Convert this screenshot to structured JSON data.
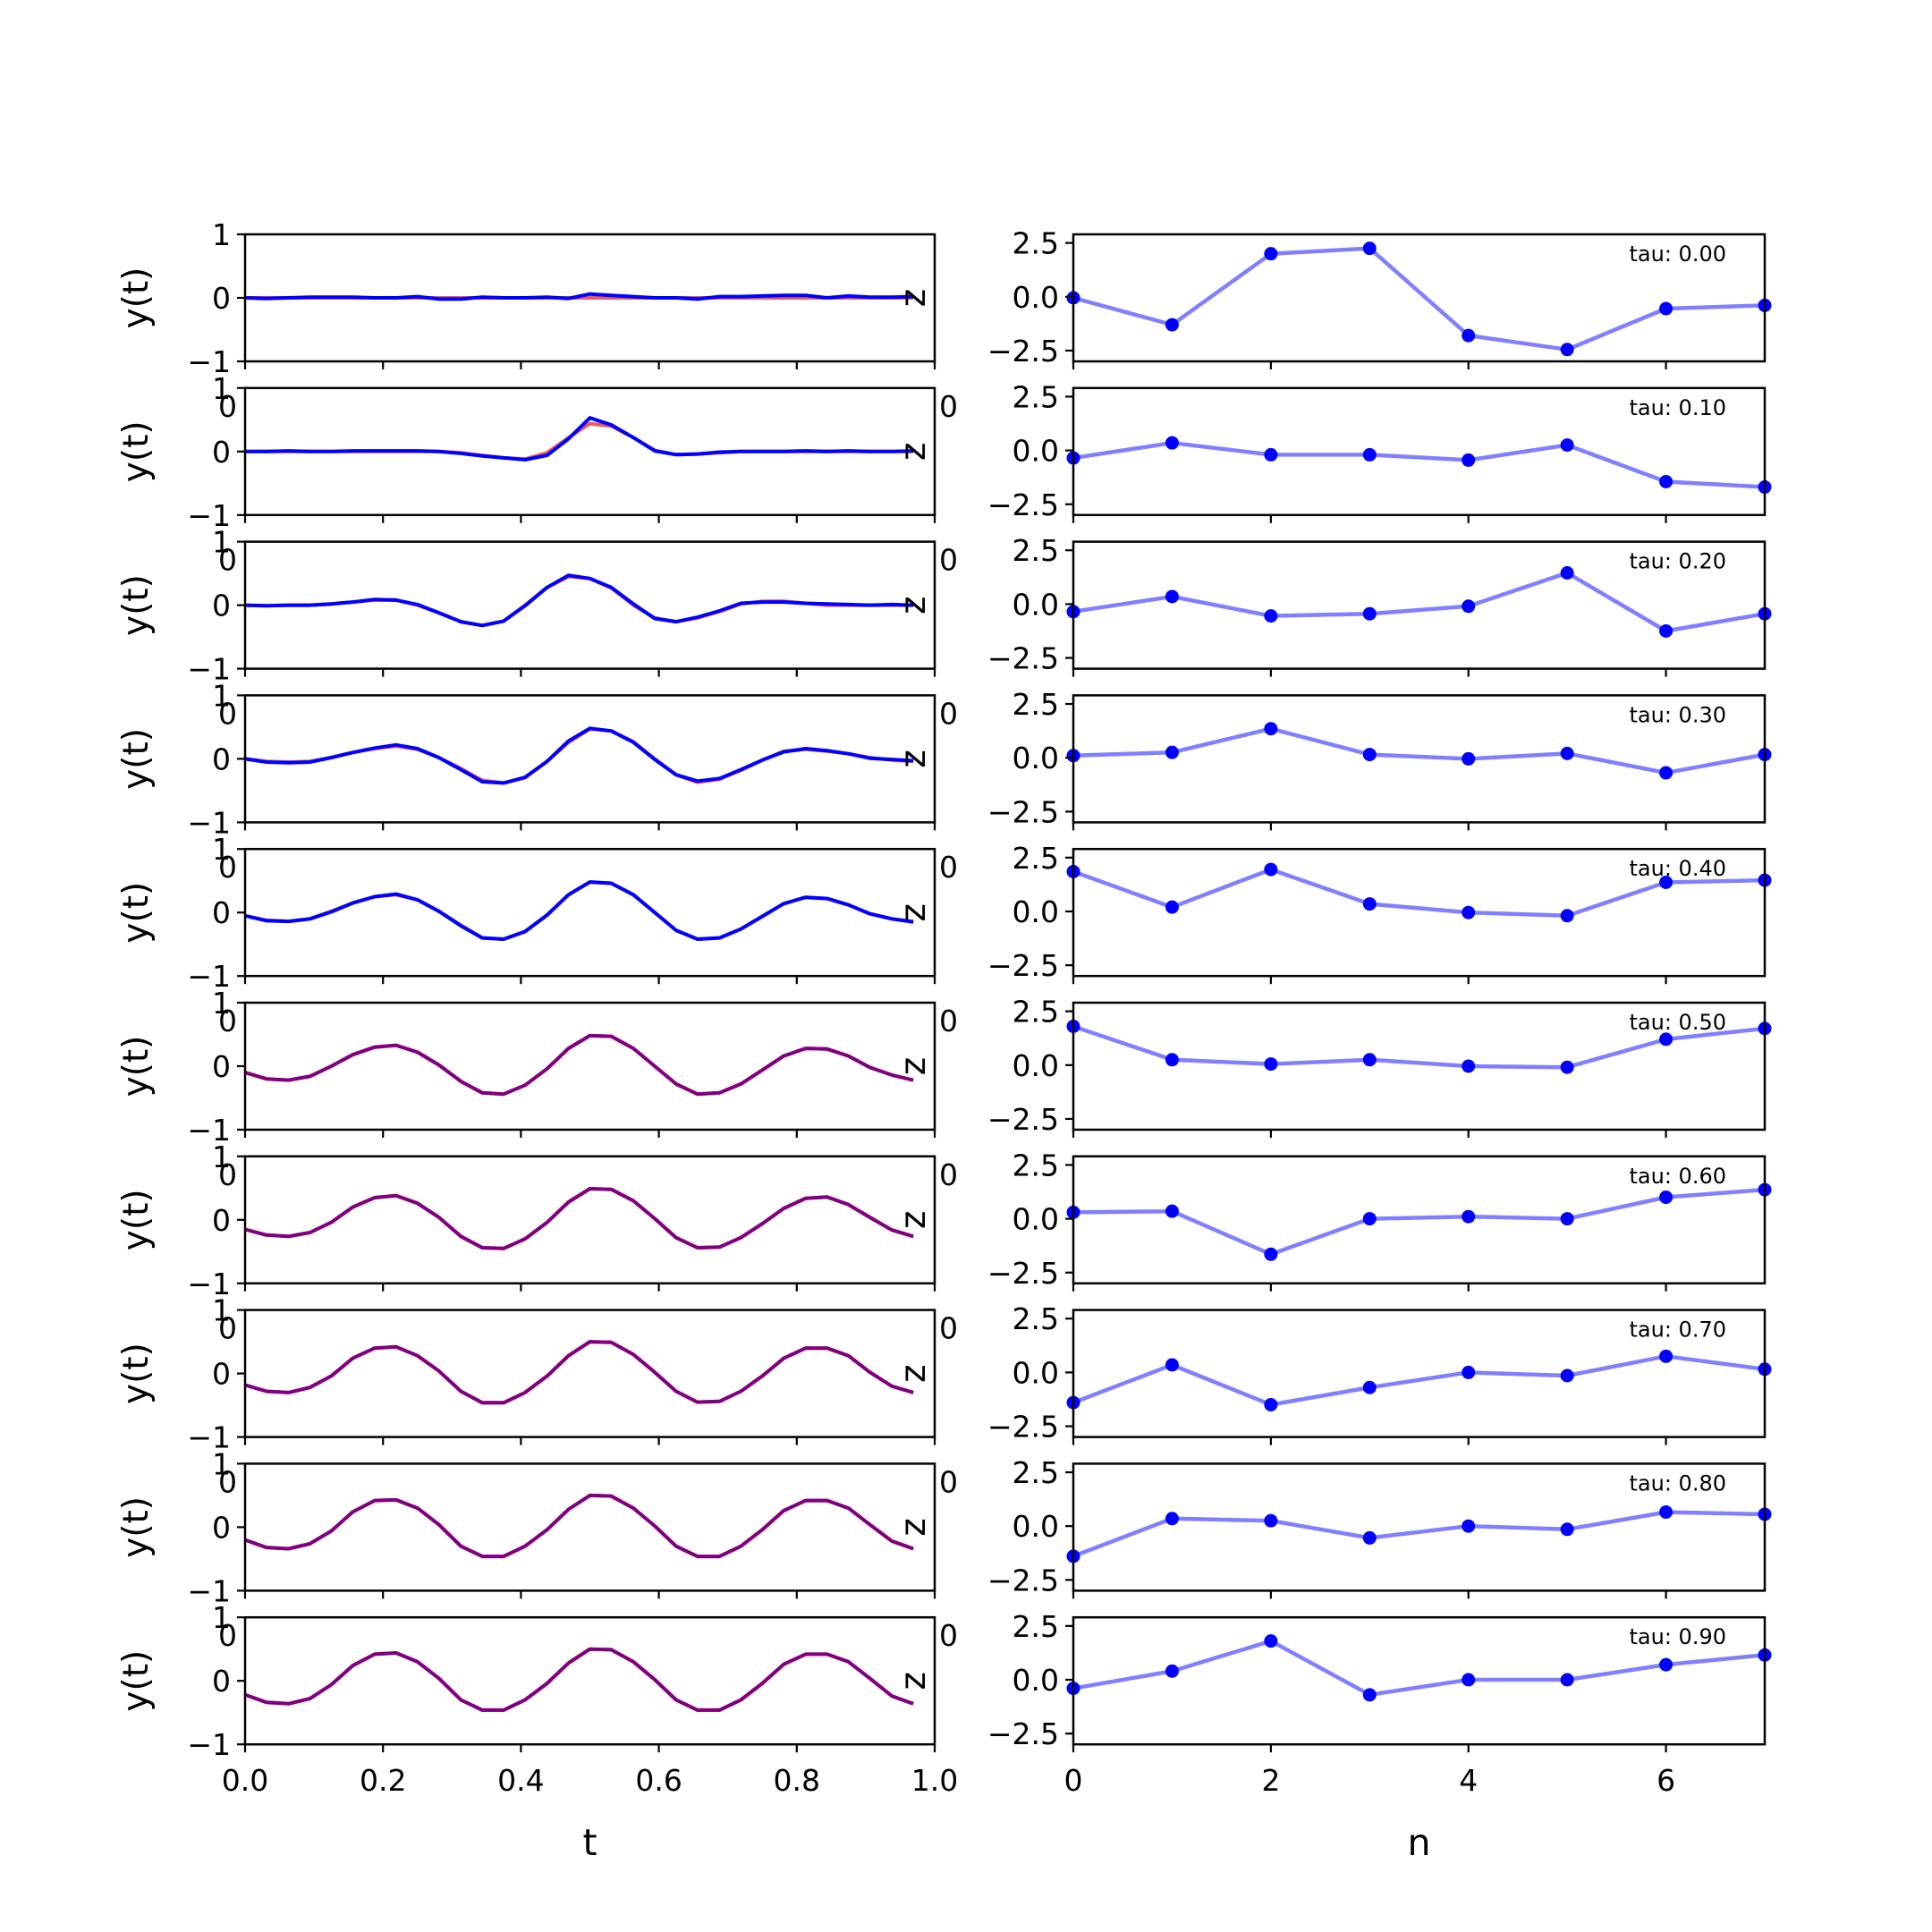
{
  "colors": {
    "wave_red": "#e8484c",
    "wave_blue": "#0000ff",
    "wave_overlay": "#800080",
    "sample_line": "#8080ff",
    "sample_marker": "#0000ff"
  },
  "chart_data": [
    {
      "type": "line",
      "panel": "left",
      "x": [
        0.0,
        0.031,
        0.063,
        0.094,
        0.125,
        0.156,
        0.188,
        0.219,
        0.25,
        0.281,
        0.313,
        0.344,
        0.375,
        0.406,
        0.438,
        0.469,
        0.5,
        0.531,
        0.563,
        0.594,
        0.625,
        0.656,
        0.688,
        0.719,
        0.75,
        0.781,
        0.813,
        0.844,
        0.875,
        0.906,
        0.938,
        0.969
      ],
      "xlim": [
        0.0,
        1.0
      ],
      "ylim": [
        -1,
        1
      ],
      "xticks": [
        "0.0",
        "0.2",
        "0.4",
        "0.6",
        "0.8",
        "1.0"
      ],
      "yticks": [
        "1",
        "0",
        "−1"
      ],
      "xlabel": "t",
      "ylabel": "y(t)",
      "side_labels": [
        "0",
        "z"
      ],
      "rows": [
        {
          "red": [
            0.0,
            0.0,
            0.0,
            0.0,
            0.0,
            0.0,
            0.0,
            0.0,
            0.0,
            0.0,
            0.0,
            0.0,
            0.0,
            0.0,
            0.0,
            0.0,
            0.0,
            0.0,
            0.0,
            0.0,
            0.0,
            0.0,
            0.0,
            0.0,
            0.0,
            0.0,
            0.0,
            0.0,
            0.0,
            0.0,
            0.0,
            0.0
          ],
          "blue": [
            0.0,
            -0.01,
            0.0,
            0.01,
            0.01,
            0.01,
            0.0,
            0.0,
            0.02,
            -0.02,
            -0.02,
            0.01,
            0.0,
            0.0,
            0.01,
            -0.01,
            0.06,
            0.04,
            0.02,
            0.0,
            0.0,
            -0.02,
            0.02,
            0.02,
            0.03,
            0.04,
            0.04,
            0.0,
            0.03,
            0.01,
            0.01,
            0.02
          ]
        },
        {
          "red": [
            0.0,
            0.0,
            0.0,
            0.0,
            0.0,
            0.0,
            0.0,
            0.0,
            0.0,
            0.0,
            -0.02,
            -0.06,
            -0.1,
            -0.12,
            -0.02,
            0.22,
            0.44,
            0.4,
            0.22,
            0.02,
            -0.05,
            -0.04,
            -0.02,
            0.0,
            0.0,
            0.0,
            0.0,
            0.0,
            0.0,
            0.0,
            0.0,
            0.0
          ],
          "blue": [
            0.0,
            0.0,
            0.01,
            0.0,
            0.0,
            0.01,
            0.01,
            0.01,
            0.01,
            0.0,
            -0.03,
            -0.07,
            -0.1,
            -0.13,
            -0.06,
            0.2,
            0.53,
            0.42,
            0.22,
            0.01,
            -0.05,
            -0.04,
            -0.01,
            0.0,
            0.0,
            0.0,
            0.01,
            0.0,
            0.01,
            0.0,
            0.0,
            0.01
          ]
        },
        {
          "red": [
            0.0,
            -0.01,
            0.0,
            0.0,
            0.02,
            0.05,
            0.08,
            0.08,
            0.0,
            -0.12,
            -0.26,
            -0.32,
            -0.25,
            0.0,
            0.28,
            0.45,
            0.42,
            0.27,
            0.0,
            -0.2,
            -0.26,
            -0.2,
            -0.1,
            0.02,
            0.06,
            0.06,
            0.03,
            0.0,
            0.0,
            0.0,
            0.0,
            0.0
          ],
          "blue": [
            0.0,
            -0.01,
            0.0,
            0.0,
            0.02,
            0.05,
            0.09,
            0.08,
            0.01,
            -0.12,
            -0.26,
            -0.32,
            -0.25,
            -0.01,
            0.28,
            0.47,
            0.42,
            0.28,
            0.02,
            -0.21,
            -0.26,
            -0.19,
            -0.09,
            0.03,
            0.05,
            0.05,
            0.03,
            0.02,
            0.01,
            0.0,
            0.01,
            0.0
          ]
        },
        {
          "red": [
            0.0,
            -0.04,
            -0.05,
            -0.04,
            0.02,
            0.1,
            0.16,
            0.2,
            0.15,
            0.02,
            -0.15,
            -0.34,
            -0.38,
            -0.3,
            -0.04,
            0.26,
            0.47,
            0.44,
            0.27,
            0.0,
            -0.25,
            -0.37,
            -0.32,
            -0.18,
            -0.02,
            0.12,
            0.15,
            0.12,
            0.08,
            0.02,
            -0.02,
            -0.04
          ],
          "blue": [
            0.0,
            -0.05,
            -0.06,
            -0.05,
            0.02,
            0.1,
            0.17,
            0.22,
            0.16,
            0.02,
            -0.17,
            -0.36,
            -0.38,
            -0.29,
            -0.04,
            0.28,
            0.48,
            0.44,
            0.26,
            -0.01,
            -0.25,
            -0.35,
            -0.31,
            -0.17,
            -0.02,
            0.11,
            0.16,
            0.13,
            0.08,
            0.01,
            -0.01,
            -0.03
          ]
        },
        {
          "red": [
            -0.05,
            -0.12,
            -0.14,
            -0.1,
            0.02,
            0.15,
            0.25,
            0.28,
            0.2,
            0.02,
            -0.2,
            -0.4,
            -0.42,
            -0.3,
            -0.04,
            0.28,
            0.48,
            0.46,
            0.28,
            0.0,
            -0.28,
            -0.42,
            -0.4,
            -0.26,
            -0.06,
            0.14,
            0.24,
            0.22,
            0.12,
            -0.02,
            -0.1,
            -0.14
          ],
          "blue": [
            -0.05,
            -0.13,
            -0.14,
            -0.1,
            0.01,
            0.15,
            0.25,
            0.29,
            0.2,
            0.02,
            -0.21,
            -0.4,
            -0.42,
            -0.3,
            -0.04,
            0.28,
            0.48,
            0.46,
            0.28,
            0.0,
            -0.28,
            -0.42,
            -0.4,
            -0.26,
            -0.06,
            0.14,
            0.24,
            0.22,
            0.12,
            -0.02,
            -0.1,
            -0.15
          ]
        },
        {
          "red": [
            -0.1,
            -0.2,
            -0.22,
            -0.16,
            0.0,
            0.18,
            0.3,
            0.33,
            0.22,
            0.02,
            -0.24,
            -0.42,
            -0.44,
            -0.3,
            -0.04,
            0.28,
            0.48,
            0.47,
            0.28,
            0.0,
            -0.28,
            -0.44,
            -0.42,
            -0.28,
            -0.06,
            0.16,
            0.28,
            0.27,
            0.16,
            -0.02,
            -0.14,
            -0.22
          ],
          "blue": [
            -0.1,
            -0.2,
            -0.22,
            -0.16,
            0.0,
            0.18,
            0.3,
            0.33,
            0.22,
            0.02,
            -0.24,
            -0.42,
            -0.44,
            -0.3,
            -0.04,
            0.28,
            0.48,
            0.47,
            0.28,
            0.0,
            -0.28,
            -0.44,
            -0.42,
            -0.28,
            -0.06,
            0.16,
            0.28,
            0.27,
            0.16,
            -0.02,
            -0.14,
            -0.22
          ]
        },
        {
          "red": [
            -0.15,
            -0.24,
            -0.26,
            -0.2,
            -0.04,
            0.2,
            0.35,
            0.38,
            0.26,
            0.04,
            -0.26,
            -0.44,
            -0.45,
            -0.3,
            -0.04,
            0.28,
            0.49,
            0.48,
            0.3,
            0.02,
            -0.28,
            -0.44,
            -0.43,
            -0.28,
            -0.06,
            0.18,
            0.34,
            0.36,
            0.24,
            0.04,
            -0.16,
            -0.26
          ],
          "blue": [
            -0.15,
            -0.24,
            -0.26,
            -0.2,
            -0.04,
            0.2,
            0.35,
            0.38,
            0.26,
            0.04,
            -0.26,
            -0.44,
            -0.45,
            -0.3,
            -0.04,
            0.28,
            0.49,
            0.48,
            0.3,
            0.02,
            -0.28,
            -0.44,
            -0.43,
            -0.28,
            -0.06,
            0.18,
            0.34,
            0.36,
            0.24,
            0.04,
            -0.16,
            -0.26
          ]
        },
        {
          "red": [
            -0.18,
            -0.28,
            -0.3,
            -0.22,
            -0.04,
            0.24,
            0.4,
            0.42,
            0.28,
            0.04,
            -0.28,
            -0.46,
            -0.46,
            -0.3,
            -0.04,
            0.28,
            0.5,
            0.49,
            0.3,
            0.02,
            -0.28,
            -0.45,
            -0.44,
            -0.28,
            -0.04,
            0.24,
            0.4,
            0.4,
            0.28,
            0.02,
            -0.2,
            -0.3
          ],
          "blue": [
            -0.18,
            -0.28,
            -0.3,
            -0.22,
            -0.04,
            0.24,
            0.4,
            0.42,
            0.28,
            0.04,
            -0.28,
            -0.46,
            -0.46,
            -0.3,
            -0.04,
            0.28,
            0.5,
            0.49,
            0.3,
            0.02,
            -0.28,
            -0.45,
            -0.44,
            -0.28,
            -0.04,
            0.24,
            0.4,
            0.4,
            0.28,
            0.02,
            -0.2,
            -0.3
          ]
        },
        {
          "red": [
            -0.2,
            -0.32,
            -0.34,
            -0.26,
            -0.06,
            0.24,
            0.42,
            0.43,
            0.3,
            0.04,
            -0.3,
            -0.46,
            -0.46,
            -0.3,
            -0.04,
            0.28,
            0.5,
            0.49,
            0.3,
            0.02,
            -0.3,
            -0.46,
            -0.46,
            -0.3,
            -0.04,
            0.26,
            0.42,
            0.42,
            0.3,
            0.04,
            -0.22,
            -0.34
          ],
          "blue": [
            -0.2,
            -0.32,
            -0.34,
            -0.26,
            -0.06,
            0.24,
            0.42,
            0.43,
            0.3,
            0.04,
            -0.3,
            -0.46,
            -0.46,
            -0.3,
            -0.04,
            0.28,
            0.5,
            0.49,
            0.3,
            0.02,
            -0.3,
            -0.46,
            -0.46,
            -0.3,
            -0.04,
            0.26,
            0.42,
            0.42,
            0.3,
            0.04,
            -0.22,
            -0.34
          ]
        },
        {
          "red": [
            -0.22,
            -0.34,
            -0.36,
            -0.28,
            -0.06,
            0.24,
            0.42,
            0.44,
            0.3,
            0.04,
            -0.3,
            -0.46,
            -0.46,
            -0.3,
            -0.04,
            0.28,
            0.5,
            0.49,
            0.3,
            0.02,
            -0.3,
            -0.46,
            -0.46,
            -0.3,
            -0.04,
            0.26,
            0.42,
            0.42,
            0.3,
            0.04,
            -0.24,
            -0.36
          ],
          "blue": [
            -0.22,
            -0.34,
            -0.36,
            -0.28,
            -0.06,
            0.24,
            0.42,
            0.44,
            0.3,
            0.04,
            -0.3,
            -0.46,
            -0.46,
            -0.3,
            -0.04,
            0.28,
            0.5,
            0.49,
            0.3,
            0.02,
            -0.3,
            -0.46,
            -0.46,
            -0.3,
            -0.04,
            0.26,
            0.42,
            0.42,
            0.3,
            0.04,
            -0.24,
            -0.36
          ]
        }
      ]
    },
    {
      "type": "line",
      "panel": "right",
      "x": [
        0,
        1,
        2,
        3,
        4,
        5,
        6,
        7
      ],
      "xlim": [
        0,
        7
      ],
      "ylim": [
        -3.0,
        2.9
      ],
      "xticks": [
        "0",
        "2",
        "4",
        "6"
      ],
      "yticks": [
        "2.5",
        "0.0",
        "−2.5"
      ],
      "xlabel": "n",
      "ylabel": "",
      "side_labels": [
        "0"
      ],
      "rows": [
        {
          "tau": "tau: 0.00",
          "values": [
            -0.05,
            -1.3,
            2.0,
            2.25,
            -1.8,
            -2.45,
            -0.55,
            -0.4
          ]
        },
        {
          "tau": "tau: 0.10",
          "values": [
            -0.35,
            0.35,
            -0.2,
            -0.2,
            -0.45,
            0.25,
            -1.45,
            -1.7
          ]
        },
        {
          "tau": "tau: 0.20",
          "values": [
            -0.35,
            0.35,
            -0.55,
            -0.45,
            -0.1,
            1.45,
            -1.25,
            -0.45
          ]
        },
        {
          "tau": "tau: 0.30",
          "values": [
            0.1,
            0.25,
            1.35,
            0.15,
            -0.05,
            0.2,
            -0.7,
            0.15
          ]
        },
        {
          "tau": "tau: 0.40",
          "values": [
            1.85,
            0.2,
            1.95,
            0.35,
            -0.05,
            -0.2,
            1.35,
            1.45
          ]
        },
        {
          "tau": "tau: 0.50",
          "values": [
            1.8,
            0.25,
            0.05,
            0.25,
            -0.05,
            -0.1,
            1.2,
            1.7
          ]
        },
        {
          "tau": "tau: 0.60",
          "values": [
            0.3,
            0.35,
            -1.65,
            0.0,
            0.1,
            0.0,
            1.0,
            1.35
          ]
        },
        {
          "tau": "tau: 0.70",
          "values": [
            -1.4,
            0.35,
            -1.5,
            -0.7,
            0.0,
            -0.15,
            0.75,
            0.15
          ]
        },
        {
          "tau": "tau: 0.80",
          "values": [
            -1.4,
            0.35,
            0.25,
            -0.55,
            0.0,
            -0.15,
            0.65,
            0.55
          ]
        },
        {
          "tau": "tau: 0.90",
          "values": [
            -0.4,
            0.4,
            1.8,
            -0.7,
            0.0,
            0.0,
            0.7,
            1.15
          ]
        }
      ]
    }
  ]
}
